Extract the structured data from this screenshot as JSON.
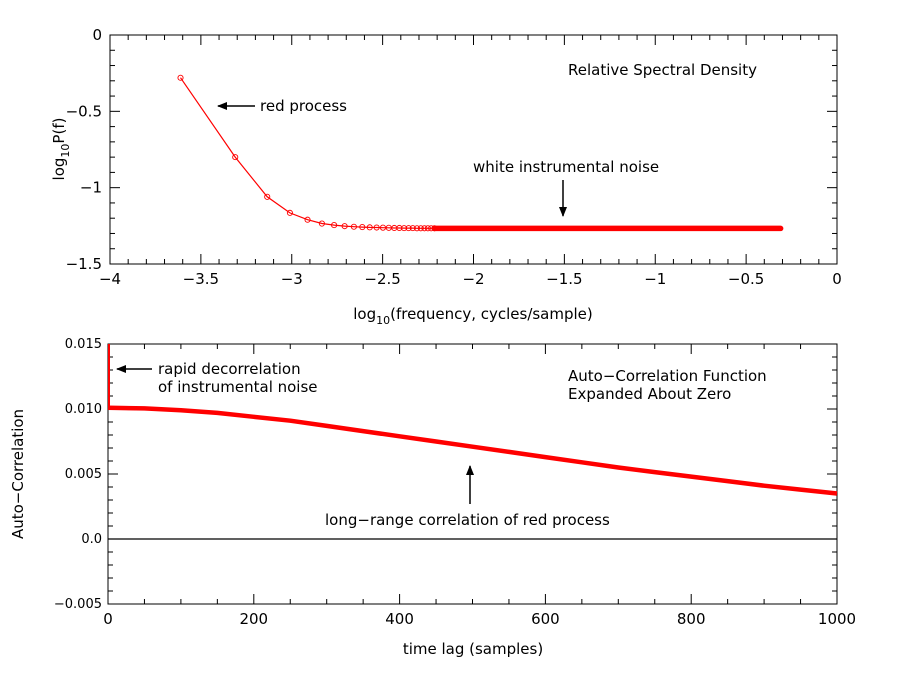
{
  "chart_data": [
    {
      "type": "line",
      "title": "Relative Spectral Density",
      "xlabel_prefix": "log",
      "xlabel_sub": "10",
      "xlabel_rest": "(frequency, cycles/sample)",
      "ylabel_prefix": "log",
      "ylabel_sub": "10",
      "ylabel_rest": "P(f)",
      "xlim": [
        -4,
        0
      ],
      "ylim": [
        -1.5,
        0
      ],
      "x_ticks": [
        -4,
        -3.5,
        -3,
        -2.5,
        -2,
        -1.5,
        -1,
        -0.5,
        0
      ],
      "x_tick_labels": [
        "−4",
        "−3.5",
        "−3",
        "−2.5",
        "−2",
        "−1.5",
        "−1",
        "−0.5",
        "0"
      ],
      "y_ticks": [
        -1.5,
        -1,
        -0.5,
        0
      ],
      "y_tick_labels": [
        "−1.5",
        "−1",
        "−0.5",
        "0"
      ],
      "series": [
        {
          "color": "#ff0000",
          "marker": "circle",
          "x": [
            -3.612,
            -3.311,
            -3.135,
            -3.01,
            -2.913,
            -2.834,
            -2.767,
            -2.709,
            -2.658,
            -2.612,
            -2.571,
            -2.533,
            -2.498,
            -2.466,
            -2.436,
            -2.408,
            -2.382,
            -2.357,
            -2.334,
            -2.311,
            -2.29,
            -2.27,
            -2.251,
            -2.233,
            -2.215
          ],
          "y": [
            -0.28,
            -0.8,
            -1.06,
            -1.165,
            -1.21,
            -1.235,
            -1.245,
            -1.252,
            -1.256,
            -1.258,
            -1.26,
            -1.261,
            -1.262,
            -1.263,
            -1.264,
            -1.264,
            -1.265,
            -1.265,
            -1.265,
            -1.266,
            -1.266,
            -1.266,
            -1.266,
            -1.266,
            -1.266
          ]
        }
      ],
      "continuation": {
        "x_start": -2.215,
        "x_end": -0.31,
        "y": -1.267
      },
      "annotations": [
        {
          "text": "red process",
          "arrow_tip": [
            -3.5,
            -0.48
          ]
        },
        {
          "text": "white instrumental noise",
          "arrow_tip": [
            -1.5,
            -1.24
          ]
        }
      ]
    },
    {
      "type": "line",
      "title_lines": [
        "Auto−Correlation Function",
        "Expanded About Zero"
      ],
      "xlabel": "time lag (samples)",
      "ylabel": "Auto−Correlation",
      "xlim": [
        0,
        1000
      ],
      "ylim": [
        -0.005,
        0.015
      ],
      "x_ticks": [
        0,
        200,
        400,
        600,
        800,
        1000
      ],
      "x_tick_labels": [
        "0",
        "200",
        "400",
        "600",
        "800",
        "1000"
      ],
      "y_ticks": [
        -0.005,
        0.0,
        0.005,
        0.01,
        0.015
      ],
      "y_tick_labels": [
        "−0.005",
        "0.0",
        "0.005",
        "0.010",
        "0.015"
      ],
      "series": [
        {
          "color": "#ff0000",
          "x": [
            0,
            50,
            100,
            150,
            200,
            250,
            300,
            350,
            400,
            450,
            500,
            550,
            600,
            650,
            700,
            750,
            800,
            850,
            900,
            950,
            1000
          ],
          "y": [
            0.0101,
            0.01005,
            0.0099,
            0.0097,
            0.0094,
            0.0091,
            0.0087,
            0.0083,
            0.0079,
            0.0075,
            0.0071,
            0.0067,
            0.0063,
            0.0059,
            0.0055,
            0.00515,
            0.0048,
            0.00445,
            0.0041,
            0.0038,
            0.0035
          ]
        }
      ],
      "spike": {
        "x": 0,
        "y_from": 0.0101,
        "y_to": 0.015
      },
      "zero_line": 0.0,
      "annotations": [
        {
          "lines": [
            "rapid decorrelation",
            "of instrumental noise"
          ],
          "arrow_tip": [
            5,
            0.0135
          ]
        },
        {
          "text": "long−range correlation of red process",
          "arrow_tip": [
            500,
            0.0071
          ]
        }
      ]
    }
  ]
}
